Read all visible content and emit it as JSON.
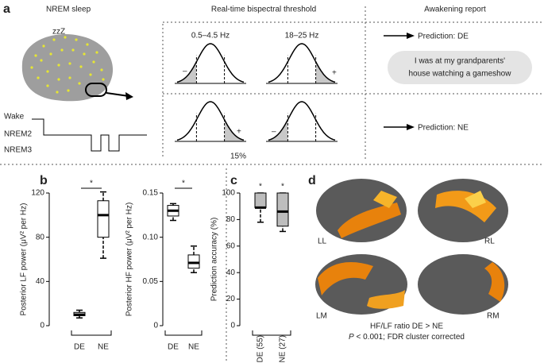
{
  "panel_a": {
    "label": "a",
    "sleep_title": "NREM sleep",
    "zzz": "zzZ",
    "threshold_title": "Real-time bispectral threshold",
    "report_title": "Awakening report",
    "band_low": "0.5–4.5 Hz",
    "band_high": "18–25 Hz",
    "minus_top": "–",
    "plus_top": "+",
    "plus_bottom": "+",
    "minus_bottom": "–",
    "percent": "15%",
    "prediction_de": "Prediction: DE",
    "prediction_ne": "Prediction: NE",
    "report": [
      "I was at my grandparents'",
      "house watching a gameshow"
    ],
    "stages": [
      "Wake",
      "NREM2",
      "NREM3"
    ]
  },
  "panel_b": {
    "label": "b"
  },
  "panel_c": {
    "label": "c"
  },
  "chart_data": [
    {
      "type": "box",
      "ylabel": "Posterior LF power (μV² per Hz)",
      "categories": [
        "DE",
        "NE"
      ],
      "boxes": [
        {
          "whislo": 7,
          "q1": 9,
          "med": 10,
          "q3": 12,
          "whishi": 14
        },
        {
          "whislo": 61,
          "q1": 80,
          "med": 100,
          "q3": 113,
          "whishi": 121
        }
      ],
      "ylim": [
        0,
        120
      ],
      "yticks": [
        0,
        40,
        80,
        120
      ],
      "significance": "*",
      "box_color": "#ffffff",
      "rotate_labels": false
    },
    {
      "type": "box",
      "ylabel": "Posterior HF power (μV² per Hz)",
      "categories": [
        "DE",
        "NE"
      ],
      "boxes": [
        {
          "whislo": 0.119,
          "q1": 0.124,
          "med": 0.13,
          "q3": 0.136,
          "whishi": 0.138
        },
        {
          "whislo": 0.06,
          "q1": 0.065,
          "med": 0.071,
          "q3": 0.08,
          "whishi": 0.09
        }
      ],
      "ylim": [
        0,
        0.15
      ],
      "yticks": [
        0,
        0.05,
        {
          "value": 0.1,
          "label": "0.10"
        },
        0.15
      ],
      "significance": "*",
      "box_color": "#ffffff",
      "rotate_labels": false
    },
    {
      "type": "box",
      "ylabel": "Prediction accuracy (%)",
      "categories": [
        "DE (55)",
        "NE (27)"
      ],
      "boxes": [
        {
          "whislo": 78,
          "q1": 89,
          "med": 89,
          "q3": 100,
          "whishi": 100
        },
        {
          "whislo": 71,
          "q1": 75,
          "med": 86,
          "q3": 100,
          "whishi": 100
        }
      ],
      "ylim": [
        0,
        100
      ],
      "yticks": [
        0,
        20,
        40,
        60,
        80,
        100
      ],
      "significance_each": [
        "*",
        "*"
      ],
      "box_color": "#bdbdbd",
      "rotate_labels": true
    }
  ],
  "panel_d": {
    "label": "d",
    "views": [
      "LL",
      "RL",
      "LM",
      "RM"
    ],
    "caption": "HF/LF ratio DE > NE",
    "stat_p": "P",
    "stat_rest": " < 0.001; FDR cluster corrected"
  }
}
